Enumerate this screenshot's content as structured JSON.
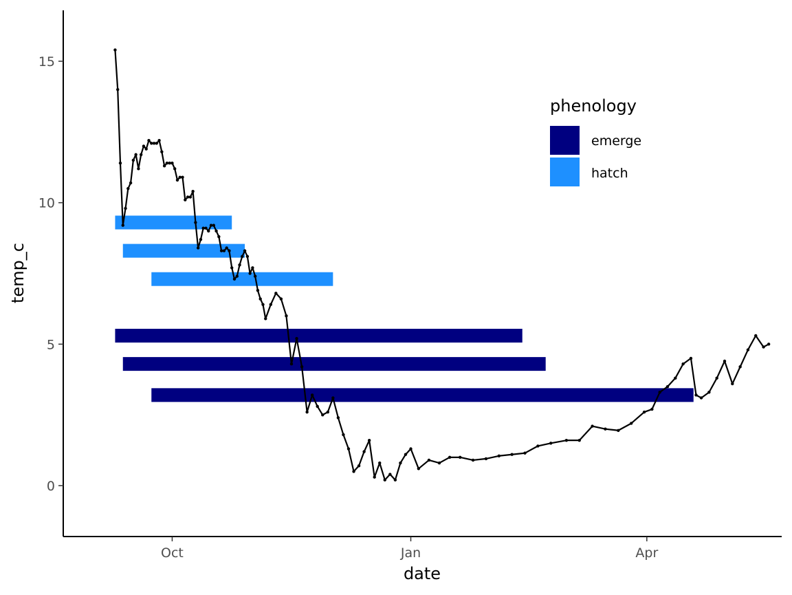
{
  "chart_data": {
    "type": "line",
    "title": "",
    "xlabel": "date",
    "ylabel": "temp_c",
    "x_ticks": [
      "Oct",
      "Jan",
      "Apr"
    ],
    "x_tick_dates": [
      "2019-10-01",
      "2020-01-01",
      "2020-04-01"
    ],
    "y_ticks": [
      0,
      5,
      10,
      15
    ],
    "xlim": [
      "2019-08-20",
      "2020-05-23"
    ],
    "ylim": [
      -1.8,
      16.8
    ],
    "grid": false,
    "legend": {
      "title": "phenology",
      "position": "top-right-inside",
      "entries": [
        {
          "label": "emerge",
          "color": "#000080"
        },
        {
          "label": "hatch",
          "color": "#1E90FF"
        }
      ]
    },
    "phenology_bars": [
      {
        "phenology": "hatch",
        "start": "2019-09-09",
        "end": "2019-10-24",
        "temp_c": 9.3
      },
      {
        "phenology": "hatch",
        "start": "2019-09-12",
        "end": "2019-10-29",
        "temp_c": 8.3
      },
      {
        "phenology": "hatch",
        "start": "2019-09-23",
        "end": "2019-12-02",
        "temp_c": 7.3
      },
      {
        "phenology": "emerge",
        "start": "2019-09-09",
        "end": "2020-02-13",
        "temp_c": 5.3
      },
      {
        "phenology": "emerge",
        "start": "2019-09-12",
        "end": "2020-02-22",
        "temp_c": 4.3
      },
      {
        "phenology": "emerge",
        "start": "2019-09-23",
        "end": "2020-04-19",
        "temp_c": 3.2
      }
    ],
    "series": [
      {
        "x": [
          "2019-09-09",
          "2019-09-10",
          "2019-09-11",
          "2019-09-12",
          "2019-09-13",
          "2019-09-14",
          "2019-09-15",
          "2019-09-16",
          "2019-09-17",
          "2019-09-18",
          "2019-09-19",
          "2019-09-20",
          "2019-09-21",
          "2019-09-22",
          "2019-09-23",
          "2019-09-24",
          "2019-09-25",
          "2019-09-26",
          "2019-09-27",
          "2019-09-28",
          "2019-09-29",
          "2019-09-30",
          "2019-10-01",
          "2019-10-02",
          "2019-10-03",
          "2019-10-04",
          "2019-10-05",
          "2019-10-06",
          "2019-10-07",
          "2019-10-08",
          "2019-10-09",
          "2019-10-10",
          "2019-10-11",
          "2019-10-12",
          "2019-10-13",
          "2019-10-14",
          "2019-10-15",
          "2019-10-16",
          "2019-10-17",
          "2019-10-18",
          "2019-10-19",
          "2019-10-20",
          "2019-10-21",
          "2019-10-22",
          "2019-10-23",
          "2019-10-24",
          "2019-10-25",
          "2019-10-26",
          "2019-10-27",
          "2019-10-28",
          "2019-10-29",
          "2019-10-30",
          "2019-10-31",
          "2019-11-01",
          "2019-11-02",
          "2019-11-03",
          "2019-11-04",
          "2019-11-05",
          "2019-11-06",
          "2019-11-08",
          "2019-11-10",
          "2019-11-12",
          "2019-11-14",
          "2019-11-16",
          "2019-11-18",
          "2019-11-20",
          "2019-11-22",
          "2019-11-24",
          "2019-11-26",
          "2019-11-28",
          "2019-11-30",
          "2019-12-02",
          "2019-12-04",
          "2019-12-06",
          "2019-12-08",
          "2019-12-10",
          "2019-12-12",
          "2019-12-14",
          "2019-12-16",
          "2019-12-18",
          "2019-12-20",
          "2019-12-22",
          "2019-12-24",
          "2019-12-26",
          "2019-12-28",
          "2019-12-30",
          "2020-01-01",
          "2020-01-04",
          "2020-01-08",
          "2020-01-12",
          "2020-01-16",
          "2020-01-20",
          "2020-01-25",
          "2020-01-30",
          "2020-02-04",
          "2020-02-09",
          "2020-02-14",
          "2020-02-19",
          "2020-02-24",
          "2020-03-01",
          "2020-03-06",
          "2020-03-11",
          "2020-03-16",
          "2020-03-21",
          "2020-03-26",
          "2020-03-31",
          "2020-04-03",
          "2020-04-06",
          "2020-04-09",
          "2020-04-12",
          "2020-04-15",
          "2020-04-18",
          "2020-04-20",
          "2020-04-22",
          "2020-04-25",
          "2020-04-28",
          "2020-05-01",
          "2020-05-04",
          "2020-05-07",
          "2020-05-10",
          "2020-05-13",
          "2020-05-16",
          "2020-05-18"
        ],
        "y": [
          15.4,
          14.0,
          11.4,
          9.2,
          9.8,
          10.5,
          10.7,
          11.5,
          11.7,
          11.2,
          11.7,
          12.0,
          11.9,
          12.2,
          12.1,
          12.1,
          12.1,
          12.2,
          11.8,
          11.3,
          11.4,
          11.4,
          11.4,
          11.2,
          10.8,
          10.9,
          10.9,
          10.1,
          10.2,
          10.2,
          10.4,
          9.3,
          8.4,
          8.7,
          9.1,
          9.1,
          9.0,
          9.2,
          9.2,
          9.0,
          8.8,
          8.3,
          8.3,
          8.4,
          8.3,
          7.7,
          7.3,
          7.4,
          7.8,
          8.1,
          8.3,
          8.1,
          7.5,
          7.7,
          7.4,
          6.9,
          6.6,
          6.4,
          5.9,
          6.4,
          6.8,
          6.6,
          6.0,
          4.3,
          5.2,
          4.2,
          2.6,
          3.2,
          2.8,
          2.5,
          2.6,
          3.1,
          2.4,
          1.8,
          1.3,
          0.5,
          0.7,
          1.2,
          1.6,
          0.3,
          0.8,
          0.2,
          0.4,
          0.2,
          0.8,
          1.1,
          1.3,
          0.6,
          0.9,
          0.8,
          1.0,
          1.0,
          0.9,
          0.95,
          1.05,
          1.1,
          1.15,
          1.4,
          1.5,
          1.6,
          1.6,
          2.1,
          2.0,
          1.95,
          2.2,
          2.6,
          2.7,
          3.3,
          3.5,
          3.8,
          4.3,
          4.5,
          3.2,
          3.1,
          3.3,
          3.8,
          4.4,
          3.6,
          4.2,
          4.8,
          5.3,
          4.9,
          5.0
        ]
      }
    ]
  }
}
